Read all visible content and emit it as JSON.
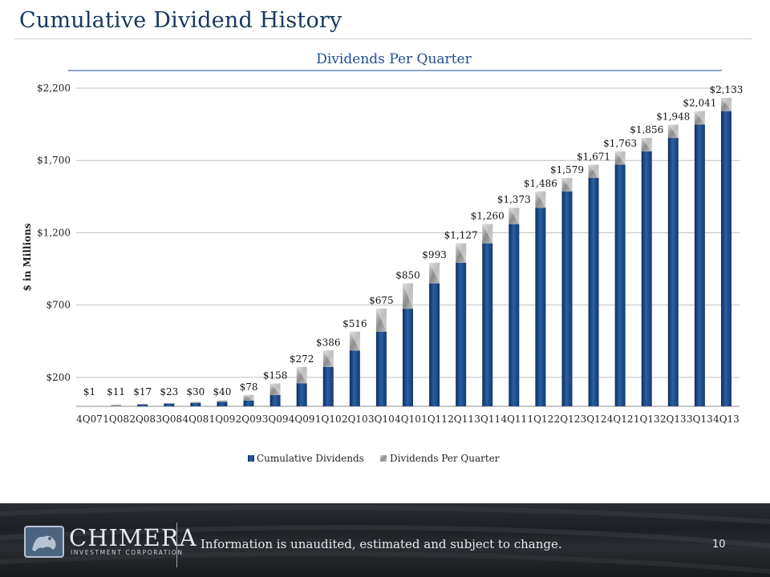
{
  "page": {
    "title": "Cumulative Dividend History",
    "disclaimer": "Information is unaudited, estimated and subject to change.",
    "page_number": "10",
    "logo_name": "CHIMERA",
    "logo_sub": "INVESTMENT CORPORATION"
  },
  "colors": {
    "title": "#17375e",
    "cumulative": "#1f4e8c",
    "cumulative_dark": "#0d2f5c",
    "quarter": "#a6a6a6",
    "grid": "#bfbfbf"
  },
  "chart_data": {
    "type": "bar",
    "stacked": true,
    "title": "Dividends Per Quarter",
    "xlabel": "",
    "ylabel": "$ in Millions",
    "ylim": [
      0,
      2200
    ],
    "yticks": [
      200,
      700,
      1200,
      1700,
      2200
    ],
    "ytick_labels": [
      "$200",
      "$700",
      "$1,200",
      "$1,700",
      "$2,200"
    ],
    "grid": true,
    "legend": "bottom",
    "categories": [
      "4Q07",
      "1Q08",
      "2Q08",
      "3Q08",
      "4Q08",
      "1Q09",
      "2Q09",
      "3Q09",
      "4Q09",
      "1Q10",
      "2Q10",
      "3Q10",
      "4Q10",
      "1Q11",
      "2Q11",
      "3Q11",
      "4Q11",
      "1Q12",
      "2Q12",
      "3Q12",
      "4Q12",
      "1Q13",
      "2Q13",
      "3Q13",
      "4Q13"
    ],
    "series": [
      {
        "name": "Cumulative Dividends",
        "values": [
          0,
          1,
          11,
          17,
          23,
          30,
          40,
          78,
          158,
          272,
          386,
          516,
          675,
          850,
          993,
          1127,
          1260,
          1373,
          1486,
          1579,
          1671,
          1763,
          1856,
          1948,
          2041
        ]
      },
      {
        "name": "Dividends Per Quarter",
        "values": [
          1,
          10,
          6,
          6,
          7,
          10,
          38,
          80,
          114,
          114,
          130,
          159,
          175,
          143,
          134,
          133,
          113,
          113,
          93,
          92,
          92,
          93,
          92,
          93,
          92
        ]
      }
    ],
    "data_labels": [
      "$1",
      "$11",
      "$17",
      "$23",
      "$30",
      "$40",
      "$78",
      "$158",
      "$272",
      "$386",
      "$516",
      "$675",
      "$850",
      "$993",
      "$1,127",
      "$1,260",
      "$1,373",
      "$1,486",
      "$1,579",
      "$1,671",
      "$1,763",
      "$1,856",
      "$1,948",
      "$2,041",
      "$2,133"
    ]
  }
}
